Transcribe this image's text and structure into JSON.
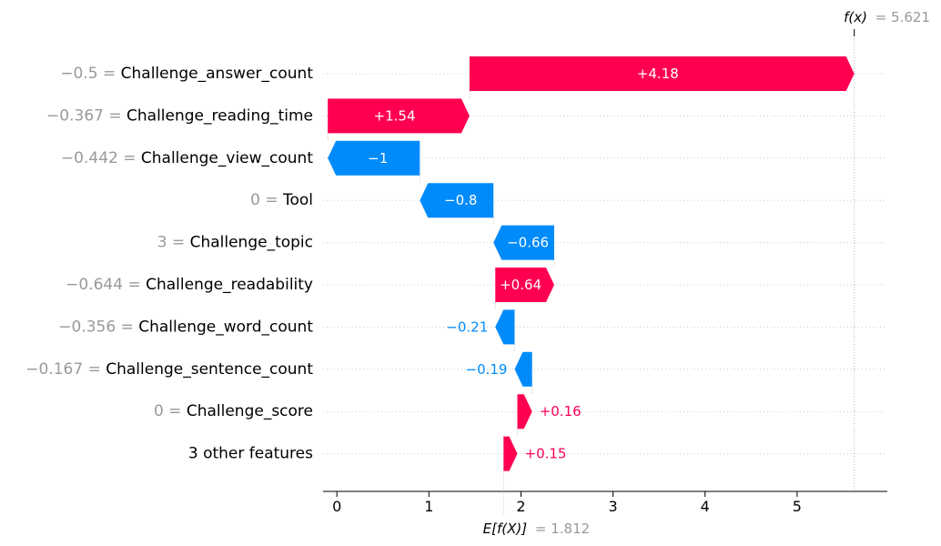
{
  "chart_data": {
    "type": "waterfall",
    "base_value": 1.812,
    "final_value": 5.621,
    "base_label": "E[f(X)]",
    "final_label": "f(x)",
    "base_value_text": "= 1.812",
    "final_value_text": "= 5.621",
    "xlim": [
      -0.15,
      5.98
    ],
    "xticks": [
      0,
      1,
      2,
      3,
      4,
      5
    ],
    "features": [
      {
        "value": "−0.5",
        "name": "Challenge_answer_count",
        "contribution": 4.18,
        "label": "+4.18"
      },
      {
        "value": "−0.367",
        "name": "Challenge_reading_time",
        "contribution": 1.54,
        "label": "+1.54"
      },
      {
        "value": "−0.442",
        "name": "Challenge_view_count",
        "contribution": -1.0,
        "label": "−1"
      },
      {
        "value": "0",
        "name": "Tool",
        "contribution": -0.8,
        "label": "−0.8"
      },
      {
        "value": "3",
        "name": "Challenge_topic",
        "contribution": -0.66,
        "label": "−0.66"
      },
      {
        "value": "−0.644",
        "name": "Challenge_readability",
        "contribution": 0.64,
        "label": "+0.64"
      },
      {
        "value": "−0.356",
        "name": "Challenge_word_count",
        "contribution": -0.21,
        "label": "−0.21"
      },
      {
        "value": "−0.167",
        "name": "Challenge_sentence_count",
        "contribution": -0.19,
        "label": "−0.19"
      },
      {
        "value": "0",
        "name": "Challenge_score",
        "contribution": 0.16,
        "label": "+0.16"
      },
      {
        "value": "",
        "name": "3 other features",
        "contribution": 0.15,
        "label": "+0.15"
      }
    ],
    "colors": {
      "positive": "#ff0051",
      "negative": "#008bfb",
      "value_text": "#999999",
      "grid": "#cccccc"
    }
  }
}
